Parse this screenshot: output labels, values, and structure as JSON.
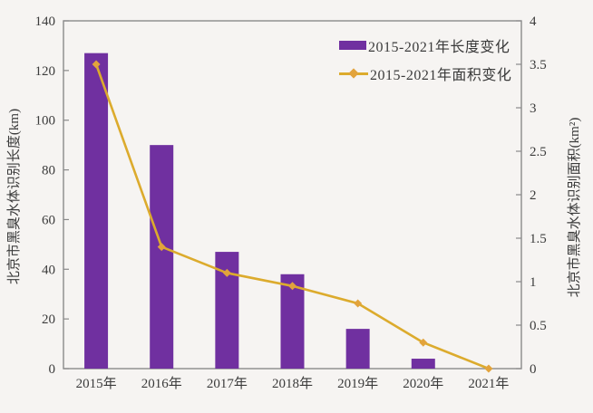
{
  "chart_data": {
    "type": "combo",
    "categories": [
      "2015年",
      "2016年",
      "2017年",
      "2018年",
      "2019年",
      "2020年",
      "2021年"
    ],
    "series": [
      {
        "name": "2015-2021年长度变化",
        "type": "bar",
        "axis": "left",
        "values": [
          127,
          90,
          47,
          38,
          16,
          4,
          0
        ],
        "color": "#7030A0"
      },
      {
        "name": "2015-2021年面积变化",
        "type": "line",
        "axis": "right",
        "values": [
          3.5,
          1.4,
          1.1,
          0.95,
          0.75,
          0.3,
          0
        ],
        "color": "#DCAB2D",
        "marker": "diamond",
        "marker_color": "#E2A33C"
      }
    ],
    "left_axis": {
      "label": "北京市黑臭水体识别长度(km)",
      "min": 0,
      "max": 140,
      "tick_labels": [
        "0",
        "20",
        "40",
        "60",
        "80",
        "100",
        "120",
        "140"
      ]
    },
    "right_axis": {
      "label": "北京市黑臭水体识别面积(km²)",
      "min": 0,
      "max": 4,
      "tick_labels": [
        "0",
        "0.5",
        "1",
        "1.5",
        "2",
        "2.5",
        "3",
        "3.5",
        "4"
      ]
    },
    "legend": {
      "position": "top-right"
    },
    "grid": false,
    "frame_color": "#8A8A8A",
    "text_color": "#3B3B3B",
    "background": "#F6F4F2"
  }
}
